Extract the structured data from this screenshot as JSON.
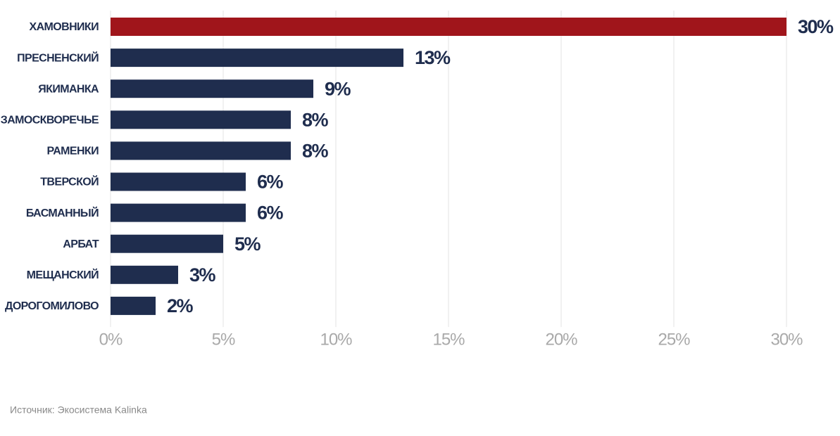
{
  "chart_data": {
    "type": "bar",
    "orientation": "horizontal",
    "categories": [
      "ХАМОВНИКИ",
      "ПРЕСНЕНСКИЙ",
      "ЯКИМАНКА",
      "ЗАМОСКВОРЕЧЬЕ",
      "РАМЕНКИ",
      "ТВЕРСКОЙ",
      "БАСМАННЫЙ",
      "АРБАТ",
      "МЕЩАНСКИЙ",
      "ДОРОГОМИЛОВО"
    ],
    "values": [
      30,
      13,
      9,
      8,
      8,
      6,
      6,
      5,
      3,
      2
    ],
    "value_labels": [
      "30%",
      "13%",
      "9%",
      "8%",
      "8%",
      "6%",
      "6%",
      "5%",
      "3%",
      "2%"
    ],
    "colors": [
      "#a0151b",
      "#1f2d4e",
      "#1f2d4e",
      "#1f2d4e",
      "#1f2d4e",
      "#1f2d4e",
      "#1f2d4e",
      "#1f2d4e",
      "#1f2d4e",
      "#1f2d4e"
    ],
    "xlim": [
      0,
      30
    ],
    "xticks": [
      {
        "value": 0,
        "label": "0%"
      },
      {
        "value": 5,
        "label": "5%"
      },
      {
        "value": 10,
        "label": "10%"
      },
      {
        "value": 15,
        "label": "15%"
      },
      {
        "value": 20,
        "label": "20%"
      },
      {
        "value": 25,
        "label": "25%"
      },
      {
        "value": 30,
        "label": "30%"
      }
    ],
    "grid": true,
    "source": "Источник: Экосистема Kalinka"
  }
}
